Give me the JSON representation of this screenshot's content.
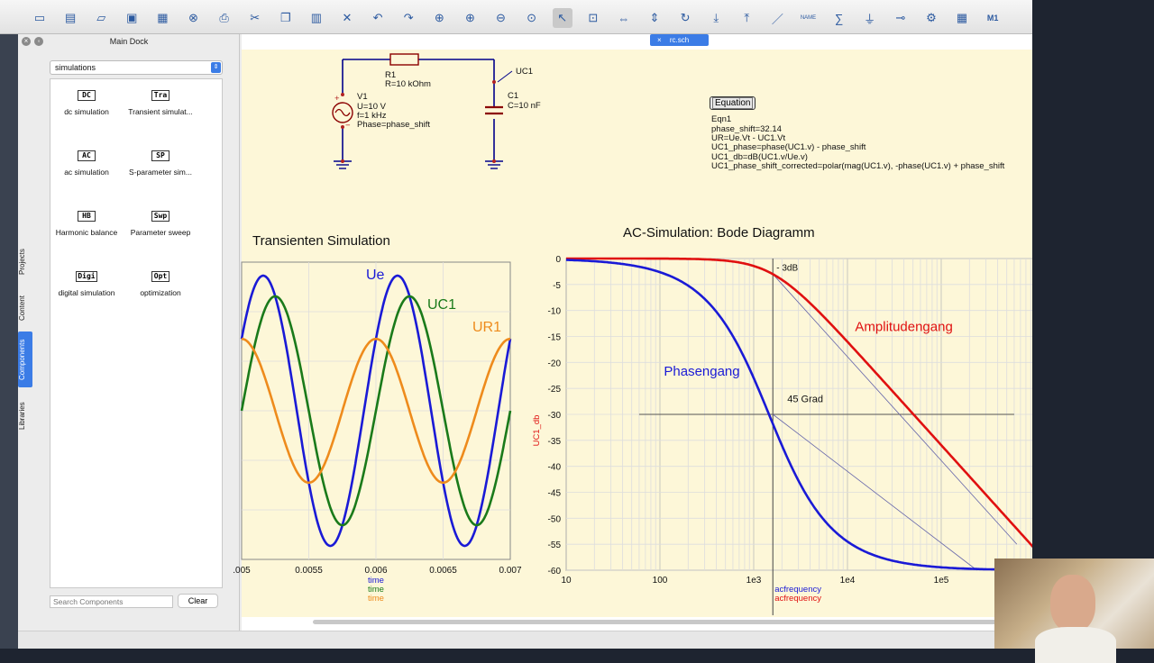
{
  "toolbar": {
    "icons": [
      "new-file-icon",
      "new-text-icon",
      "open-icon",
      "save-icon",
      "save-all-icon",
      "close-icon",
      "print-icon",
      "cut-icon",
      "copy-icon",
      "paste-icon",
      "delete-icon",
      "undo-icon",
      "redo-icon",
      "zoom-fit-icon",
      "zoom-in-icon",
      "zoom-out-icon",
      "zoom-reset-icon",
      "select-icon",
      "edit-component-icon",
      "mirror-x-icon",
      "mirror-y-icon",
      "rotate-icon",
      "go-into-icon",
      "pop-out-icon",
      "wire-icon",
      "label-icon",
      "equation-icon",
      "ground-icon",
      "port-icon",
      "simulate-icon",
      "view-data-icon",
      "marker-icon"
    ],
    "name_label": "NAME",
    "marker_label": "M1"
  },
  "dock": {
    "title": "Main Dock",
    "tabs": [
      "Projects",
      "Content",
      "Components",
      "Libraries"
    ],
    "active_tab": "Components",
    "category": "simulations",
    "components": [
      {
        "icon": "DC",
        "label": "dc simulation"
      },
      {
        "icon": "Tra",
        "label": "Transient simulat..."
      },
      {
        "icon": "AC",
        "label": "ac simulation"
      },
      {
        "icon": "SP",
        "label": "S-parameter sim..."
      },
      {
        "icon": "HB",
        "label": "Harmonic balance"
      },
      {
        "icon": "Swp",
        "label": "Parameter sweep"
      },
      {
        "icon": "Digi",
        "label": "digital simulation"
      },
      {
        "icon": "Opt",
        "label": "optimization"
      }
    ],
    "search_placeholder": "Search Components",
    "clear_label": "Clear"
  },
  "document_tab": {
    "label": "rc.sch",
    "close": "×"
  },
  "schematic": {
    "resistor": {
      "name": "R1",
      "value": "R=10 kOhm"
    },
    "source": {
      "name": "V1",
      "voltage": "U=10 V",
      "freq": "f=1 kHz",
      "phase": "Phase=phase_shift",
      "plus": "+",
      "minus": "−"
    },
    "capacitor": {
      "name": "C1",
      "value": "C=10 nF"
    },
    "node_label": "UC1",
    "equation": {
      "button": "Equation",
      "lines": [
        "Eqn1",
        "phase_shift=32.14",
        "UR=Ue.Vt - UC1.Vt",
        "UC1_phase=phase(UC1.v) - phase_shift",
        "UC1_db=dB(UC1.v/Ue.v)",
        "UC1_phase_shift_corrected=polar(mag(UC1.v), -phase(UC1.v) + phase_shift"
      ]
    }
  },
  "chart_data": [
    {
      "type": "line",
      "title": "Transienten Simulation",
      "xlabel": [
        "time",
        "time",
        "time"
      ],
      "x_ticks": [
        ".005",
        "0.0055",
        "0.006",
        "0.0065",
        "0.007"
      ],
      "xlim": [
        0.005,
        0.007
      ],
      "series": [
        {
          "name": "Ue",
          "color": "#1a1ad6",
          "amplitude": 10,
          "phase_deg": 32.14
        },
        {
          "name": "UC1",
          "color": "#1a7a1a",
          "amplitude": 8.47,
          "phase_deg": 0
        },
        {
          "name": "UR1",
          "color": "#ee8b1c",
          "amplitude": 5.32,
          "phase_deg": 90
        }
      ],
      "frequency_hz": 1000
    },
    {
      "type": "line",
      "title": "AC-Simulation: Bode Diagramm",
      "ylabel": "UC1_db",
      "y_ticks": [
        "0",
        "-5",
        "-10",
        "-15",
        "-20",
        "-25",
        "-30",
        "-35",
        "-40",
        "-45",
        "-50",
        "-55",
        "-60"
      ],
      "ylim": [
        -60,
        0
      ],
      "x_scale": "log",
      "x_ticks": [
        "10",
        "100",
        "1e3",
        "1e4",
        "1e5"
      ],
      "xlim": [
        10,
        1000000
      ],
      "xlabel": [
        "acfrequency",
        "acfrequency"
      ],
      "series": [
        {
          "name": "Amplitudengang",
          "color": "#e01010",
          "corner_hz": 1600,
          "slope_db_per_decade": -20
        },
        {
          "name": "Phasengang",
          "color": "#1a1ad6",
          "corner_hz": 1600
        }
      ],
      "annotations": [
        "- 3dB",
        "45 Grad"
      ],
      "grid": true
    }
  ]
}
